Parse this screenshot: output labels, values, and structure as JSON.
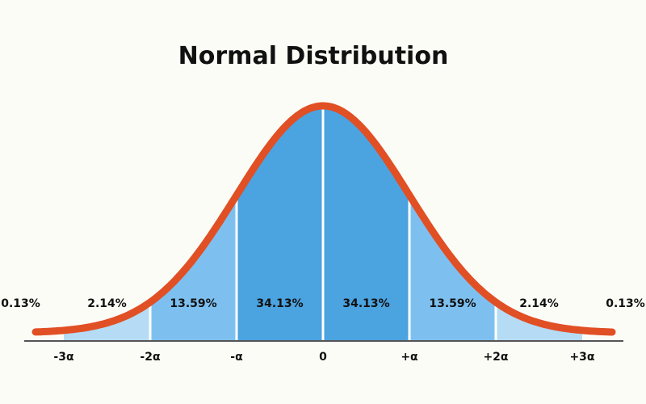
{
  "colors": {
    "background": "#fcfcf6",
    "inner_band": "#4ba3e0",
    "middle_band": "#7dc0f0",
    "outer_band": "#b5dbf5",
    "curve": "#e14f25",
    "axis": "#555555",
    "center_tick_label": "#e14f25",
    "text": "#111111"
  },
  "chart_data": {
    "type": "area",
    "title": "Normal Distribution",
    "xlabel": "",
    "ylabel": "",
    "xlim": [
      -3.75,
      3.75
    ],
    "ticks": [
      {
        "value": -3,
        "label": "-3α"
      },
      {
        "value": -2,
        "label": "-2α"
      },
      {
        "value": -1,
        "label": "-α"
      },
      {
        "value": 0,
        "label": "0"
      },
      {
        "value": 1,
        "label": "+α"
      },
      {
        "value": 2,
        "label": "+2α"
      },
      {
        "value": 3,
        "label": "+3α"
      }
    ],
    "bands": [
      {
        "from": -4,
        "to": -3,
        "label": "0.13%",
        "value": 0.13
      },
      {
        "from": -3,
        "to": -2,
        "label": "2.14%",
        "value": 2.14
      },
      {
        "from": -2,
        "to": -1,
        "label": "13.59%",
        "value": 13.59
      },
      {
        "from": -1,
        "to": 0,
        "label": "34.13%",
        "value": 34.13
      },
      {
        "from": 0,
        "to": 1,
        "label": "34.13%",
        "value": 34.13
      },
      {
        "from": 1,
        "to": 2,
        "label": "13.59%",
        "value": 13.59
      },
      {
        "from": 2,
        "to": 3,
        "label": "2.14%",
        "value": 2.14
      },
      {
        "from": 3,
        "to": 4,
        "label": "0.13%",
        "value": 0.13
      }
    ],
    "grid": false,
    "legend": "none"
  }
}
